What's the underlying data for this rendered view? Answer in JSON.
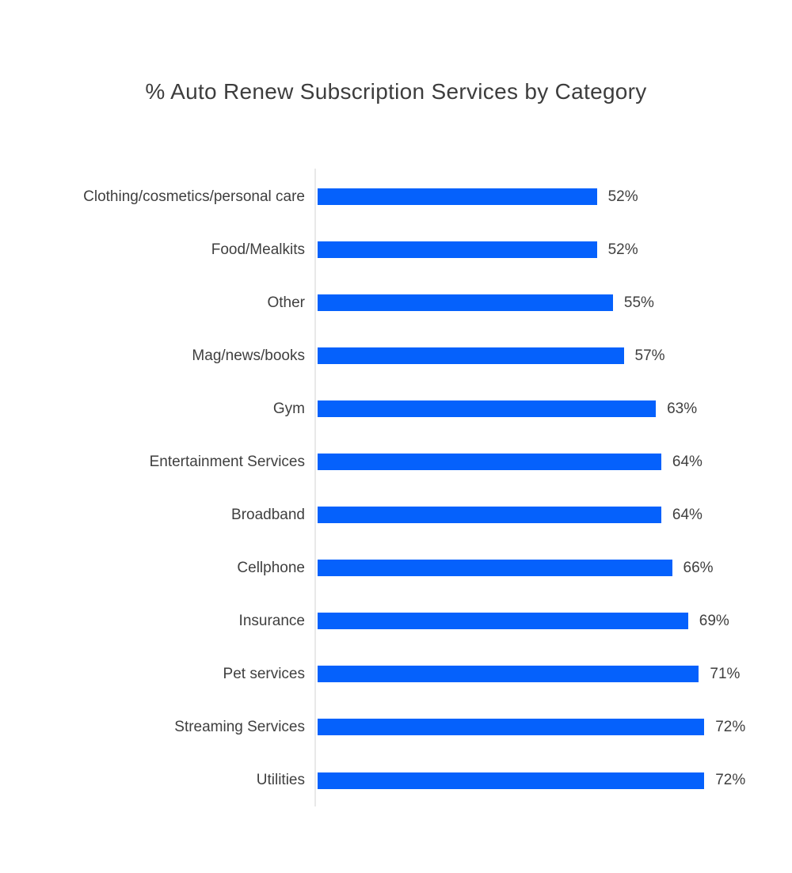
{
  "chart_data": {
    "type": "bar",
    "orientation": "horizontal",
    "title": "% Auto Renew Subscription Services by Category",
    "categories": [
      "Clothing/cosmetics/personal care",
      "Food/Mealkits",
      "Other",
      "Mag/news/books",
      "Gym",
      "Entertainment Services",
      "Broadband",
      "Cellphone",
      "Insurance",
      "Pet services",
      "Streaming Services",
      "Utilities"
    ],
    "values": [
      52,
      52,
      55,
      57,
      63,
      64,
      64,
      66,
      69,
      71,
      72,
      72
    ],
    "value_labels": [
      "52%",
      "52%",
      "55%",
      "57%",
      "63%",
      "64%",
      "64%",
      "66%",
      "69%",
      "71%",
      "72%",
      "72%"
    ],
    "xlim": [
      0,
      72
    ],
    "grid": false,
    "legend": false,
    "colors": {
      "bar": "#0561fc",
      "axis": "#e9e9e9",
      "text": "#3f3f3f",
      "background": "#ffffff"
    }
  }
}
